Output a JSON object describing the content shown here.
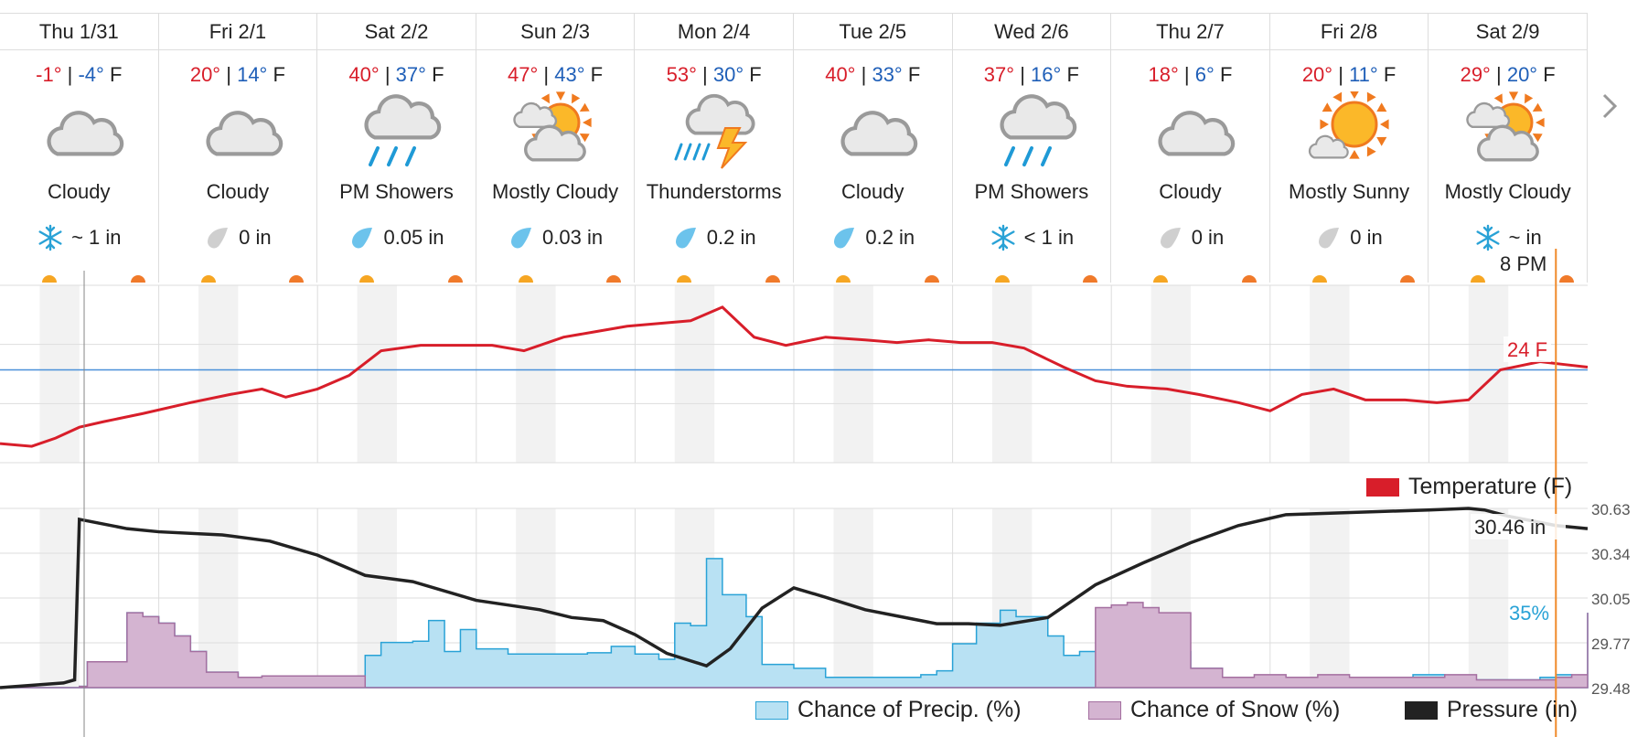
{
  "days": [
    {
      "name": "Thu 1/31",
      "hi": "-1°",
      "lo": "-4°",
      "unit": "F",
      "cond": "Cloudy",
      "icon": "cloud-icon",
      "precip_icon": "snowflake-icon",
      "precip": "~ 1 in"
    },
    {
      "name": "Fri 2/1",
      "hi": "20°",
      "lo": "14°",
      "unit": "F",
      "cond": "Cloudy",
      "icon": "cloud-icon",
      "precip_icon": "drop-gray-icon",
      "precip": "0 in"
    },
    {
      "name": "Sat 2/2",
      "hi": "40°",
      "lo": "37°",
      "unit": "F",
      "cond": "PM Showers",
      "icon": "rain-icon",
      "precip_icon": "drop-blue-icon",
      "precip": "0.05 in"
    },
    {
      "name": "Sun 2/3",
      "hi": "47°",
      "lo": "43°",
      "unit": "F",
      "cond": "Mostly Cloudy",
      "icon": "mostly-cloudy-icon",
      "precip_icon": "drop-blue-icon",
      "precip": "0.03 in"
    },
    {
      "name": "Mon 2/4",
      "hi": "53°",
      "lo": "30°",
      "unit": "F",
      "cond": "Thunderstorms",
      "icon": "thunderstorm-icon",
      "precip_icon": "drop-blue-icon",
      "precip": "0.2 in"
    },
    {
      "name": "Tue 2/5",
      "hi": "40°",
      "lo": "33°",
      "unit": "F",
      "cond": "Cloudy",
      "icon": "cloud-icon",
      "precip_icon": "drop-blue-icon",
      "precip": "0.2 in"
    },
    {
      "name": "Wed 2/6",
      "hi": "37°",
      "lo": "16°",
      "unit": "F",
      "cond": "PM Showers",
      "icon": "rain-icon",
      "precip_icon": "snowflake-icon",
      "precip": "< 1 in"
    },
    {
      "name": "Thu 2/7",
      "hi": "18°",
      "lo": "6°",
      "unit": "F",
      "cond": "Cloudy",
      "icon": "cloud-icon",
      "precip_icon": "drop-gray-icon",
      "precip": "0 in"
    },
    {
      "name": "Fri 2/8",
      "hi": "20°",
      "lo": "11°",
      "unit": "F",
      "cond": "Mostly Sunny",
      "icon": "mostly-sunny-icon",
      "precip_icon": "drop-gray-icon",
      "precip": "0 in"
    },
    {
      "name": "Sat 2/9",
      "hi": "29°",
      "lo": "20°",
      "unit": "F",
      "cond": "Mostly Cloudy",
      "icon": "mostly-cloudy-icon",
      "precip_icon": "snowflake-icon",
      "precip": "~ in"
    }
  ],
  "separator": "|",
  "next_icon": "chevron-right-icon",
  "colors": {
    "hi": "#d81e2a",
    "lo": "#1f5fb8",
    "temp_line": "#d81e2a",
    "precip_fill": "#b8e1f3",
    "precip_line": "#29a2d6",
    "snow_fill": "#d4b4d1",
    "pressure_line": "#222222",
    "hover_line": "#f08a2a"
  },
  "hover": {
    "time_label": "8 PM",
    "temp_label": "24 F",
    "precip_label": "35%",
    "pressure_label": "30.46 in"
  },
  "legend": {
    "temperature": "Temperature (F)",
    "precip": "Chance of Precip. (%)",
    "snow": "Chance of Snow (%)",
    "pressure": "Pressure (in)"
  },
  "chart_data": [
    {
      "type": "line",
      "name": "temperature",
      "series": [
        {
          "name": "Temperature (F)",
          "unit": "F",
          "x_days": [
            0,
            0.2,
            0.35,
            0.5,
            0.65,
            0.9,
            1.2,
            1.45,
            1.65,
            1.8,
            2.0,
            2.2,
            2.4,
            2.65,
            2.85,
            3.1,
            3.3,
            3.55,
            3.75,
            3.95,
            4.15,
            4.35,
            4.55,
            4.75,
            4.95,
            5.2,
            5.45,
            5.65,
            5.85,
            6.05,
            6.25,
            6.45,
            6.7,
            6.9,
            7.1,
            7.35,
            7.55,
            7.8,
            8.0,
            8.2,
            8.4,
            8.6,
            8.85,
            9.05,
            9.25,
            9.45,
            9.7,
            9.85,
            10.0
          ],
          "values": [
            -3,
            -4,
            -1,
            3,
            5,
            8,
            12,
            15,
            17,
            14,
            17,
            22,
            31,
            33,
            33,
            33,
            31,
            36,
            38,
            40,
            41,
            42,
            47,
            36,
            33,
            36,
            35,
            34,
            35,
            34,
            34,
            32,
            25,
            20,
            18,
            17,
            15,
            12,
            9,
            15,
            17,
            13,
            13,
            12,
            13,
            24,
            27,
            26,
            25
          ]
        }
      ],
      "reference_value": 24,
      "ylim": [
        -10,
        55
      ]
    },
    {
      "type": "area",
      "name": "precip_snow_pressure",
      "x_days_range": [
        0,
        10
      ],
      "pressure_axis_ticks": [
        "30.63",
        "30.34",
        "30.05",
        "29.77",
        "29.48"
      ],
      "pressure_ylim": [
        29.48,
        30.63
      ],
      "precip_ylim": [
        0,
        100
      ],
      "series": [
        {
          "name": "Chance of Precip. (%)",
          "x_days": [
            0,
            0.5,
            0.55,
            0.8,
            0.9,
            1.0,
            1.1,
            1.2,
            1.3,
            1.5,
            1.65,
            2.0,
            2.3,
            2.4,
            2.6,
            2.7,
            2.8,
            2.9,
            3.0,
            3.2,
            3.5,
            3.7,
            3.85,
            4.0,
            4.15,
            4.25,
            4.35,
            4.45,
            4.55,
            4.7,
            4.8,
            5.0,
            5.2,
            5.4,
            5.6,
            5.8,
            5.9,
            6.0,
            6.15,
            6.3,
            6.4,
            6.5,
            6.6,
            6.7,
            6.8,
            7.0,
            7.2,
            7.3,
            7.5,
            7.7,
            7.9,
            8.1,
            8.3,
            8.5,
            8.7,
            8.9,
            9.1,
            9.3,
            9.5,
            9.7,
            9.8,
            9.9,
            10.0
          ],
          "values": [
            0,
            1,
            20,
            58,
            55,
            50,
            40,
            28,
            12,
            8,
            9,
            9,
            25,
            35,
            36,
            52,
            28,
            45,
            30,
            26,
            26,
            27,
            32,
            26,
            22,
            50,
            48,
            100,
            72,
            55,
            18,
            15,
            8,
            8,
            8,
            10,
            13,
            34,
            50,
            60,
            55,
            55,
            40,
            25,
            28,
            28,
            28,
            28,
            15,
            8,
            8,
            8,
            8,
            8,
            8,
            10,
            6,
            6,
            6,
            8,
            10,
            0,
            58
          ]
        },
        {
          "name": "Chance of Snow (%)",
          "x_days": [
            0,
            0.5,
            0.55,
            0.8,
            0.9,
            1.0,
            1.1,
            1.2,
            1.3,
            1.5,
            1.65,
            2.0,
            2.3,
            6.8,
            6.9,
            7.0,
            7.1,
            7.2,
            7.3,
            7.5,
            7.7,
            7.9,
            8.1,
            8.3,
            8.5,
            8.7,
            8.9,
            9.1,
            9.3,
            9.5,
            9.7,
            9.8,
            9.9,
            10.0
          ],
          "values": [
            0,
            1,
            20,
            58,
            55,
            50,
            40,
            28,
            12,
            8,
            9,
            9,
            0,
            0,
            62,
            64,
            66,
            62,
            58,
            15,
            8,
            10,
            8,
            10,
            8,
            8,
            8,
            10,
            6,
            6,
            6,
            8,
            10,
            58
          ]
        },
        {
          "name": "Pressure (in)",
          "x_days": [
            0,
            0.4,
            0.47,
            0.5,
            0.8,
            1.0,
            1.4,
            1.7,
            2.0,
            2.3,
            2.6,
            3.0,
            3.2,
            3.4,
            3.6,
            3.8,
            4.0,
            4.2,
            4.45,
            4.6,
            4.8,
            5.0,
            5.2,
            5.45,
            5.65,
            5.9,
            6.1,
            6.3,
            6.6,
            6.9,
            7.2,
            7.5,
            7.8,
            8.1,
            8.4,
            8.7,
            9.0,
            9.25,
            9.35,
            9.5,
            9.65,
            9.8,
            10.0
          ],
          "values": [
            29.48,
            29.51,
            29.53,
            30.56,
            30.5,
            30.48,
            30.46,
            30.42,
            30.33,
            30.2,
            30.16,
            30.04,
            30.01,
            29.98,
            29.93,
            29.91,
            29.82,
            29.7,
            29.62,
            29.73,
            29.99,
            30.12,
            30.06,
            29.98,
            29.94,
            29.89,
            29.89,
            29.88,
            29.93,
            30.14,
            30.28,
            30.41,
            30.52,
            30.59,
            30.6,
            30.61,
            30.62,
            30.63,
            30.62,
            30.58,
            30.55,
            30.52,
            30.5
          ]
        }
      ]
    }
  ]
}
